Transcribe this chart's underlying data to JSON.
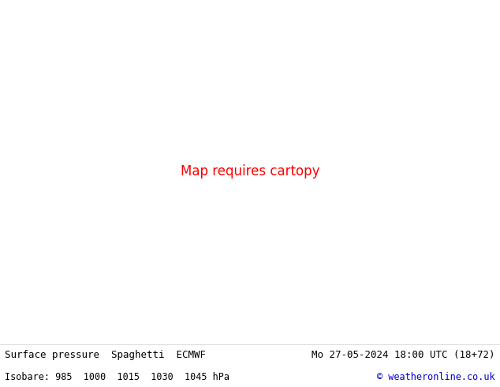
{
  "title_left": "Surface pressure  Spaghetti  ECMWF",
  "title_right": "Mo 27-05-2024 18:00 UTC (18+72)",
  "subtitle_left": "Isobare: 985  1000  1015  1030  1045 hPa",
  "subtitle_right": "© weatheronline.co.uk",
  "background_color": "#ffffff",
  "ocean_color": "#f0f0f0",
  "land_color": "#ccffaa",
  "border_color": "#888888",
  "bottom_text_color": "#000000",
  "copyright_color": "#0000cc",
  "title_fontsize": 9,
  "subtitle_fontsize": 8.5,
  "fig_width": 6.34,
  "fig_height": 4.9,
  "dpi": 100
}
